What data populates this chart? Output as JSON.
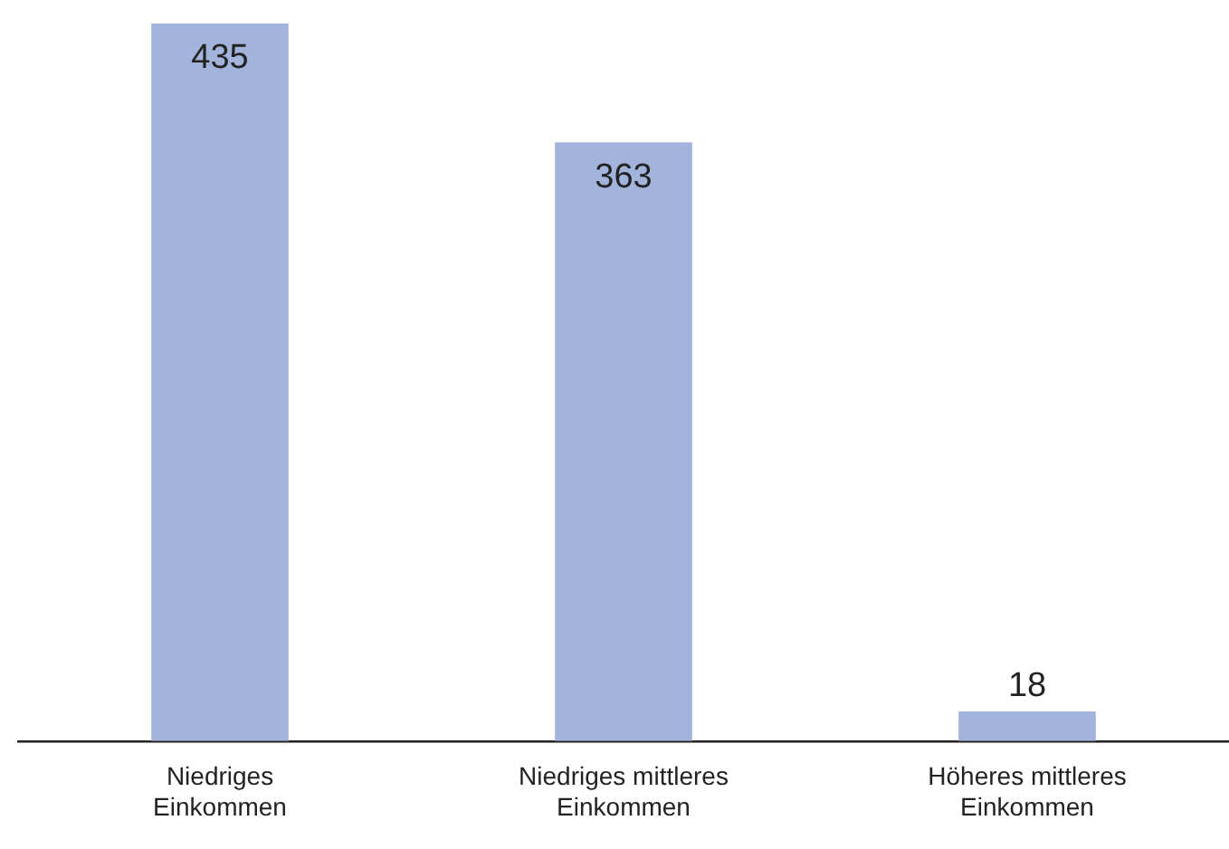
{
  "chart_data": {
    "type": "bar",
    "categories": [
      "Niedriges Einkommen",
      "Niedriges mittleres Einkommen",
      "Höheres mittleres Einkommen"
    ],
    "values": [
      435,
      363,
      18
    ],
    "color": "#a2b4dc",
    "data_labels": true,
    "grid": false,
    "legend": false
  }
}
